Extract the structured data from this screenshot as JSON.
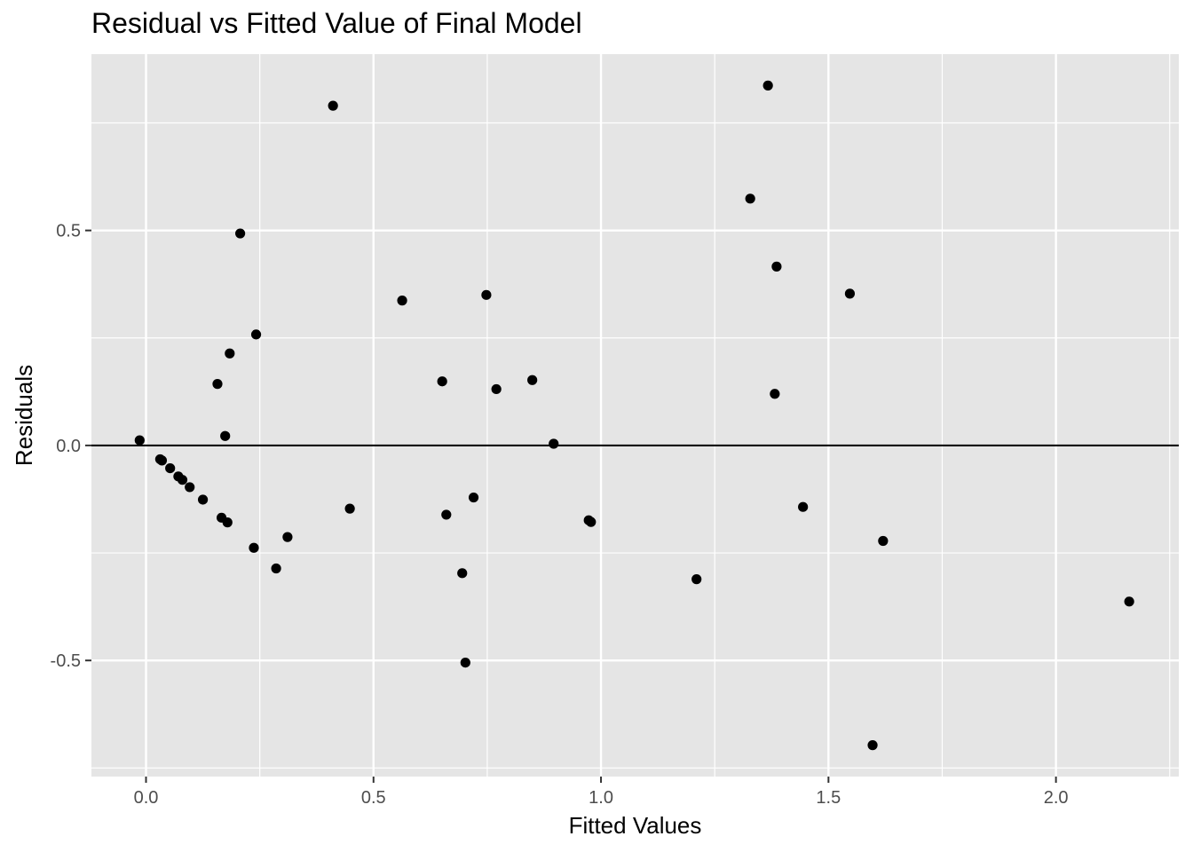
{
  "chart_data": {
    "type": "scatter",
    "title": "Residual vs Fitted Value of Final Model",
    "xlabel": "Fitted Values",
    "ylabel": "Residuals",
    "xlim": [
      -0.12,
      2.27
    ],
    "ylim": [
      -0.77,
      0.91
    ],
    "x_ticks": [
      0.0,
      0.5,
      1.0,
      1.5,
      2.0
    ],
    "x_tick_labels": [
      "0.0",
      "0.5",
      "1.0",
      "1.5",
      "2.0"
    ],
    "y_ticks": [
      -0.5,
      0.0,
      0.5
    ],
    "y_tick_labels": [
      "-0.5",
      "0.0",
      "0.5"
    ],
    "hline": 0.0,
    "grid": true,
    "colors": {
      "panel": "#e5e5e5",
      "grid": "#ffffff",
      "points": "#000000"
    },
    "points": [
      {
        "x": -0.014,
        "y": 0.012
      },
      {
        "x": 0.031,
        "y": -0.032
      },
      {
        "x": 0.035,
        "y": -0.035
      },
      {
        "x": 0.053,
        "y": -0.053
      },
      {
        "x": 0.071,
        "y": -0.072
      },
      {
        "x": 0.08,
        "y": -0.08
      },
      {
        "x": 0.096,
        "y": -0.097
      },
      {
        "x": 0.125,
        "y": -0.126
      },
      {
        "x": 0.157,
        "y": 0.143
      },
      {
        "x": 0.166,
        "y": -0.168
      },
      {
        "x": 0.174,
        "y": 0.022
      },
      {
        "x": 0.179,
        "y": -0.179
      },
      {
        "x": 0.184,
        "y": 0.214
      },
      {
        "x": 0.207,
        "y": 0.493
      },
      {
        "x": 0.237,
        "y": -0.238
      },
      {
        "x": 0.242,
        "y": 0.258
      },
      {
        "x": 0.286,
        "y": -0.286
      },
      {
        "x": 0.311,
        "y": -0.213
      },
      {
        "x": 0.411,
        "y": 0.79
      },
      {
        "x": 0.448,
        "y": -0.147
      },
      {
        "x": 0.563,
        "y": 0.337
      },
      {
        "x": 0.651,
        "y": 0.149
      },
      {
        "x": 0.66,
        "y": -0.161
      },
      {
        "x": 0.695,
        "y": -0.297
      },
      {
        "x": 0.702,
        "y": -0.505
      },
      {
        "x": 0.72,
        "y": -0.121
      },
      {
        "x": 0.748,
        "y": 0.35
      },
      {
        "x": 0.77,
        "y": 0.131
      },
      {
        "x": 0.849,
        "y": 0.152
      },
      {
        "x": 0.896,
        "y": 0.004
      },
      {
        "x": 0.973,
        "y": -0.174
      },
      {
        "x": 0.978,
        "y": -0.178
      },
      {
        "x": 1.21,
        "y": -0.311
      },
      {
        "x": 1.328,
        "y": 0.574
      },
      {
        "x": 1.367,
        "y": 0.837
      },
      {
        "x": 1.382,
        "y": 0.12
      },
      {
        "x": 1.386,
        "y": 0.416
      },
      {
        "x": 1.444,
        "y": -0.143
      },
      {
        "x": 1.547,
        "y": 0.353
      },
      {
        "x": 1.597,
        "y": -0.697
      },
      {
        "x": 1.62,
        "y": -0.222
      },
      {
        "x": 2.161,
        "y": -0.363
      }
    ]
  }
}
